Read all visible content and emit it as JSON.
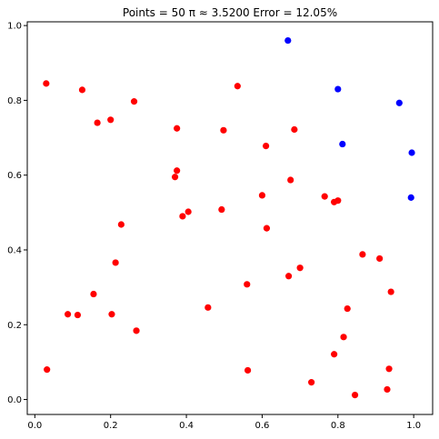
{
  "chart_data": {
    "type": "scatter",
    "title": "Points = 50   π ≈  3.5200   Error = 12.05%",
    "xlabel": "",
    "ylabel": "",
    "xlim": [
      -0.02,
      1.05
    ],
    "ylim": [
      -0.04,
      1.01
    ],
    "grid": false,
    "x_ticks": [
      "0.0",
      "0.2",
      "0.4",
      "0.6",
      "0.8",
      "1.0"
    ],
    "y_ticks": [
      "0.0",
      "0.2",
      "0.4",
      "0.6",
      "0.8",
      "1.0"
    ],
    "series": [
      {
        "color": "#ff0000",
        "points": [
          [
            0.03,
            0.845
          ],
          [
            0.125,
            0.828
          ],
          [
            0.165,
            0.74
          ],
          [
            0.2,
            0.748
          ],
          [
            0.262,
            0.797
          ],
          [
            0.535,
            0.838
          ],
          [
            0.375,
            0.725
          ],
          [
            0.498,
            0.72
          ],
          [
            0.61,
            0.678
          ],
          [
            0.685,
            0.722
          ],
          [
            0.375,
            0.612
          ],
          [
            0.37,
            0.595
          ],
          [
            0.675,
            0.587
          ],
          [
            0.6,
            0.546
          ],
          [
            0.765,
            0.543
          ],
          [
            0.79,
            0.528
          ],
          [
            0.8,
            0.532
          ],
          [
            0.39,
            0.49
          ],
          [
            0.405,
            0.502
          ],
          [
            0.493,
            0.508
          ],
          [
            0.228,
            0.468
          ],
          [
            0.612,
            0.458
          ],
          [
            0.213,
            0.366
          ],
          [
            0.865,
            0.388
          ],
          [
            0.91,
            0.377
          ],
          [
            0.7,
            0.352
          ],
          [
            0.67,
            0.33
          ],
          [
            0.56,
            0.308
          ],
          [
            0.155,
            0.282
          ],
          [
            0.94,
            0.288
          ],
          [
            0.457,
            0.246
          ],
          [
            0.825,
            0.243
          ],
          [
            0.087,
            0.228
          ],
          [
            0.113,
            0.226
          ],
          [
            0.203,
            0.228
          ],
          [
            0.268,
            0.184
          ],
          [
            0.815,
            0.167
          ],
          [
            0.79,
            0.121
          ],
          [
            0.032,
            0.08
          ],
          [
            0.562,
            0.078
          ],
          [
            0.935,
            0.082
          ],
          [
            0.73,
            0.046
          ],
          [
            0.845,
            0.012
          ],
          [
            0.93,
            0.027
          ]
        ]
      },
      {
        "color": "#0000ff",
        "points": [
          [
            0.668,
            0.96
          ],
          [
            0.8,
            0.83
          ],
          [
            0.962,
            0.793
          ],
          [
            0.812,
            0.683
          ],
          [
            0.995,
            0.66
          ],
          [
            0.993,
            0.54
          ]
        ]
      }
    ]
  }
}
